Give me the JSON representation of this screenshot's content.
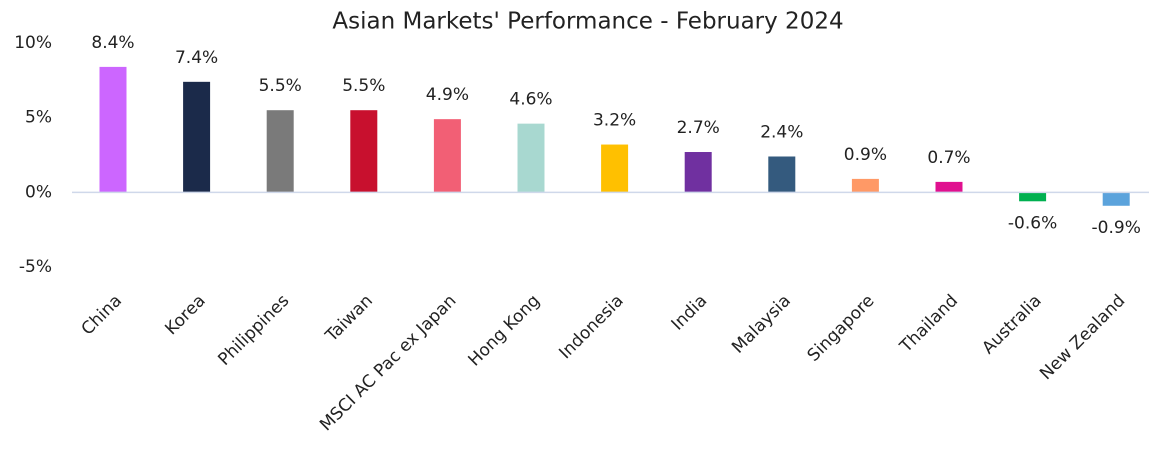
{
  "chart_data": {
    "type": "bar",
    "title": "Asian Markets' Performance - February 2024",
    "categories": [
      "China",
      "Korea",
      "Philippines",
      "Taiwan",
      "MSCI AC Pac ex Japan",
      "Hong Kong",
      "Indonesia",
      "India",
      "Malaysia",
      "Singapore",
      "Thailand",
      "Australia",
      "New Zealand"
    ],
    "values": [
      8.4,
      7.4,
      5.5,
      5.5,
      4.9,
      4.6,
      3.2,
      2.7,
      2.4,
      0.9,
      0.7,
      -0.6,
      -0.9
    ],
    "value_labels": [
      "8.4%",
      "7.4%",
      "5.5%",
      "5.5%",
      "4.9%",
      "4.6%",
      "3.2%",
      "2.7%",
      "2.4%",
      "0.9%",
      "0.7%",
      "-0.6%",
      "-0.9%"
    ],
    "colors": [
      "#cc66ff",
      "#1b2a4a",
      "#7a7a7a",
      "#c8102e",
      "#f25f75",
      "#a8d8d0",
      "#ffc000",
      "#7030a0",
      "#345a7e",
      "#ff9966",
      "#e0108f",
      "#00b050",
      "#5ba3dc"
    ],
    "ylim": [
      -5,
      10
    ],
    "yticks": [
      {
        "value": -5,
        "label": "-5%"
      },
      {
        "value": 0,
        "label": "0%"
      },
      {
        "value": 5,
        "label": "5%"
      },
      {
        "value": 10,
        "label": "10%"
      }
    ],
    "grid": false
  }
}
